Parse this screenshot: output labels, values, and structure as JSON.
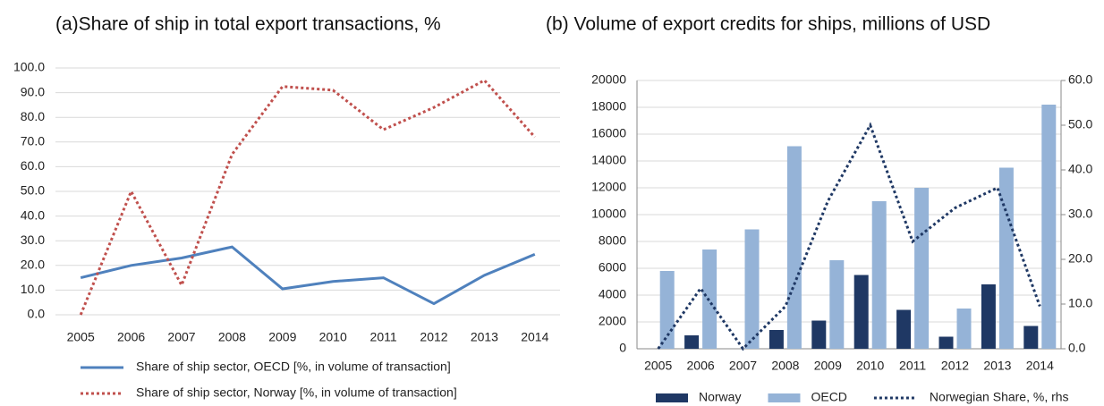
{
  "chart_data": [
    {
      "type": "line",
      "title": "(a)Share of ship in total export transactions, %",
      "categories": [
        "2005",
        "2006",
        "2007",
        "2008",
        "2009",
        "2010",
        "2011",
        "2012",
        "2013",
        "2014"
      ],
      "series": [
        {
          "name": "Share of ship sector, OECD [%, in volume of transaction]",
          "color": "#4f81bd",
          "style": "solid",
          "values": [
            15,
            20,
            23,
            27.5,
            10.5,
            13.5,
            15,
            4.5,
            16,
            24.5
          ]
        },
        {
          "name": "Share of ship sector, Norway [%, in volume of transaction]",
          "color": "#c0504d",
          "style": "dotted",
          "values": [
            0,
            50,
            12,
            65,
            92.5,
            91,
            75,
            84,
            95,
            72
          ]
        }
      ],
      "ylim": [
        0,
        100
      ],
      "yticks": [
        {
          "value": 0,
          "label": "0.0"
        },
        {
          "value": 10,
          "label": "10.0"
        },
        {
          "value": 20,
          "label": "20.0"
        },
        {
          "value": 30,
          "label": "30.0"
        },
        {
          "value": 40,
          "label": "40.0"
        },
        {
          "value": 50,
          "label": "50.0"
        },
        {
          "value": 60,
          "label": "60.0"
        },
        {
          "value": 70,
          "label": "70.0"
        },
        {
          "value": 80,
          "label": "80.0"
        },
        {
          "value": 90,
          "label": "90.0"
        },
        {
          "value": 100,
          "label": "100.0"
        }
      ],
      "grid": true,
      "legend": "bottom"
    },
    {
      "type": "bar",
      "title": "(b) Volume of export credits for ships, millions of USD",
      "categories": [
        "2005",
        "2006",
        "2007",
        "2008",
        "2009",
        "2010",
        "2011",
        "2012",
        "2013",
        "2014"
      ],
      "series": [
        {
          "name": "Norway",
          "color": "#1f3864",
          "values": [
            0,
            1000,
            0,
            1400,
            2100,
            5500,
            2900,
            900,
            4800,
            1700
          ]
        },
        {
          "name": "OECD",
          "color": "#95b3d7",
          "values": [
            5800,
            7400,
            8900,
            15100,
            6600,
            11000,
            12000,
            3000,
            13500,
            18200
          ]
        },
        {
          "name": "Norwegian Share, %, rhs",
          "color": "#1f3864",
          "type": "line",
          "style": "dotted",
          "axis": "y2",
          "values": [
            0,
            13.5,
            0,
            9.5,
            33,
            50,
            24,
            31.5,
            36,
            9.5
          ]
        }
      ],
      "ylim": [
        0,
        20000
      ],
      "yticks": [
        0,
        2000,
        4000,
        6000,
        8000,
        10000,
        12000,
        14000,
        16000,
        18000,
        20000
      ],
      "y2lim": [
        0,
        60
      ],
      "y2ticks": [
        {
          "value": 0,
          "label": "0.0"
        },
        {
          "value": 10,
          "label": "10.0"
        },
        {
          "value": 20,
          "label": "20.0"
        },
        {
          "value": 30,
          "label": "30.0"
        },
        {
          "value": 40,
          "label": "40.0"
        },
        {
          "value": 50,
          "label": "50.0"
        },
        {
          "value": 60,
          "label": "60.0"
        }
      ],
      "grid": true,
      "legend": "bottom"
    }
  ]
}
